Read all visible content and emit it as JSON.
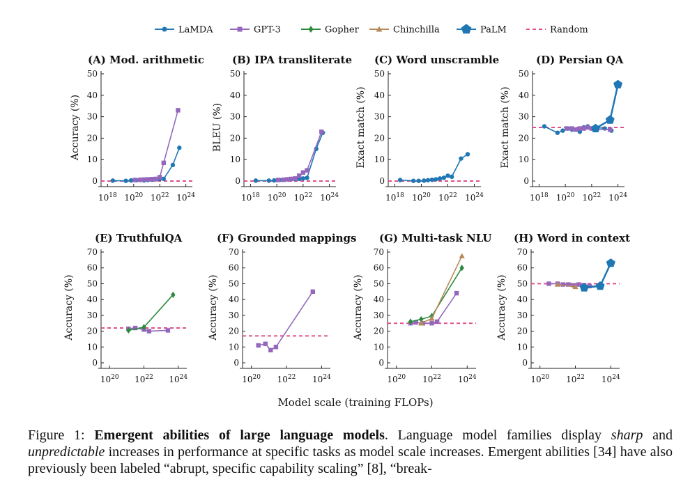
{
  "legend": {
    "items": [
      {
        "name": "LaMDA",
        "color": "#1f77b4",
        "marker": "circle"
      },
      {
        "name": "GPT-3",
        "color": "#9467bd",
        "marker": "square"
      },
      {
        "name": "Gopher",
        "color": "#2b8a3e",
        "marker": "diamond"
      },
      {
        "name": "Chinchilla",
        "color": "#b58a5a",
        "marker": "triangle"
      },
      {
        "name": "PaLM",
        "color": "#1f77b4",
        "marker": "pentagon"
      },
      {
        "name": "Random",
        "color": "#e0508a",
        "marker": "dash"
      }
    ]
  },
  "x_axis_label": "Model scale (training FLOPs)",
  "caption": {
    "figure_label": "Figure 1:",
    "bold_title": "Emergent abilities of large language models",
    "t1": ". Language model families display ",
    "i1": "sharp",
    "t2": " and ",
    "i2": "unpredictable",
    "t3": " increases in performance at specific tasks as model scale increases. Emergent abilities [34] have also previously been labeled “abrupt, specific capability scaling” [8], “break-"
  },
  "chart_data": [
    {
      "title": "(A) Mod. arithmetic",
      "type": "line",
      "ylabel": "Accuracy (%)",
      "xlim": [
        17.5,
        24.5
      ],
      "ylim": [
        0,
        50
      ],
      "yticks": [
        0,
        10,
        20,
        30,
        40,
        50
      ],
      "xticks": [
        18,
        20,
        22,
        24
      ],
      "random": 0,
      "series": [
        {
          "model": "LaMDA",
          "x": [
            18.4,
            19.4,
            19.8,
            20.2,
            20.5,
            20.8,
            21.1,
            21.4,
            21.7,
            22.0,
            22.3,
            23.0,
            23.5
          ],
          "y": [
            0.2,
            0.1,
            0.3,
            0.4,
            0.5,
            0.3,
            0.5,
            0.6,
            0.8,
            1.0,
            1.0,
            7.5,
            15.5
          ]
        },
        {
          "model": "GPT-3",
          "x": [
            20.1,
            20.5,
            20.8,
            21.1,
            21.4,
            21.7,
            22.0,
            22.3,
            23.4
          ],
          "y": [
            0.5,
            0.6,
            0.7,
            0.8,
            0.9,
            1.0,
            1.8,
            8.5,
            33
          ]
        }
      ]
    },
    {
      "title": "(B) IPA transliterate",
      "type": "line",
      "ylabel": "BLEU (%)",
      "xlim": [
        17.5,
        24.5
      ],
      "ylim": [
        0,
        50
      ],
      "yticks": [
        0,
        10,
        20,
        30,
        40,
        50
      ],
      "xticks": [
        18,
        20,
        22,
        24
      ],
      "random": 0,
      "series": [
        {
          "model": "LaMDA",
          "x": [
            18.4,
            19.4,
            19.8,
            20.2,
            20.5,
            20.8,
            21.1,
            21.4,
            21.7,
            22.0,
            22.3,
            23.0,
            23.5
          ],
          "y": [
            0.2,
            0.2,
            0.3,
            0.5,
            0.6,
            0.8,
            0.8,
            0.9,
            1.0,
            1.2,
            1.5,
            15,
            22.5
          ]
        },
        {
          "model": "GPT-3",
          "x": [
            20.1,
            20.5,
            20.8,
            21.1,
            21.4,
            21.7,
            22.0,
            22.3,
            23.4
          ],
          "y": [
            0.5,
            0.6,
            0.8,
            1.0,
            1.2,
            2.5,
            4,
            5,
            23
          ]
        }
      ]
    },
    {
      "title": "(C) Word unscramble",
      "type": "line",
      "ylabel": "Exact match (%)",
      "xlim": [
        17.5,
        24.5
      ],
      "ylim": [
        0,
        50
      ],
      "yticks": [
        0,
        10,
        20,
        30,
        40,
        50
      ],
      "xticks": [
        18,
        20,
        22,
        24
      ],
      "random": 0,
      "series": [
        {
          "model": "LaMDA",
          "x": [
            18.4,
            19.4,
            19.8,
            20.2,
            20.5,
            20.8,
            21.1,
            21.4,
            21.7,
            22.0,
            22.3,
            23.0,
            23.5
          ],
          "y": [
            0.5,
            0.1,
            0.1,
            0.2,
            0.4,
            0.6,
            0.8,
            1.2,
            1.5,
            2.5,
            2.0,
            10.5,
            12.5
          ]
        }
      ]
    },
    {
      "title": "(D) Persian QA",
      "type": "line",
      "ylabel": "Exact match (%)",
      "xlim": [
        17.5,
        24.5
      ],
      "ylim": [
        0,
        50
      ],
      "yticks": [
        0,
        10,
        20,
        30,
        40,
        50
      ],
      "xticks": [
        18,
        20,
        22,
        24
      ],
      "random": 25,
      "series": [
        {
          "model": "LaMDA",
          "x": [
            18.4,
            19.4,
            19.8,
            20.2,
            20.5,
            20.8,
            21.1,
            21.4,
            21.7,
            22.0,
            22.3,
            23.0,
            23.5
          ],
          "y": [
            25.5,
            22.5,
            23.5,
            24.5,
            24,
            24,
            23,
            25,
            25.5,
            24.5,
            25,
            24.5,
            23.5
          ]
        },
        {
          "model": "GPT-3",
          "x": [
            20.1,
            20.5,
            20.8,
            21.1,
            21.4,
            21.7,
            22.0,
            22.3,
            23.4
          ],
          "y": [
            24.5,
            24.5,
            24,
            24.5,
            24.5,
            25,
            24.5,
            24,
            24
          ]
        },
        {
          "model": "PaLM",
          "x": [
            22.3,
            23.4,
            24.0
          ],
          "y": [
            24.5,
            28.5,
            45
          ]
        }
      ]
    },
    {
      "title": "(E) TruthfulQA",
      "type": "line",
      "ylabel": "Accuracy (%)",
      "xlim": [
        19.5,
        24.5
      ],
      "ylim": [
        0,
        70
      ],
      "yticks": [
        0,
        10,
        20,
        30,
        40,
        50,
        60,
        70
      ],
      "xticks": [
        20,
        22,
        24
      ],
      "random": 22,
      "series": [
        {
          "model": "GPT-3",
          "x": [
            21.1,
            21.5,
            22.0,
            22.3,
            23.4
          ],
          "y": [
            21.5,
            22,
            21,
            20,
            20.5
          ]
        },
        {
          "model": "Gopher",
          "x": [
            21.1,
            22.0,
            23.7
          ],
          "y": [
            20.5,
            22.5,
            43
          ]
        }
      ]
    },
    {
      "title": "(F) Grounded mappings",
      "type": "line",
      "ylabel": "Accuracy (%)",
      "xlim": [
        19.5,
        24.5
      ],
      "ylim": [
        0,
        70
      ],
      "yticks": [
        0,
        10,
        20,
        30,
        40,
        50,
        60,
        70
      ],
      "xticks": [
        20,
        22,
        24
      ],
      "random": 17,
      "series": [
        {
          "model": "GPT-3",
          "x": [
            20.4,
            20.8,
            21.1,
            21.4,
            23.5
          ],
          "y": [
            11,
            12,
            8,
            10,
            45
          ]
        }
      ]
    },
    {
      "title": "(G) Multi-task NLU",
      "type": "line",
      "ylabel": "Accuracy (%)",
      "xlim": [
        19.5,
        24.5
      ],
      "ylim": [
        0,
        70
      ],
      "yticks": [
        0,
        10,
        20,
        30,
        40,
        50,
        60,
        70
      ],
      "xticks": [
        20,
        22,
        24
      ],
      "random": 25,
      "series": [
        {
          "model": "GPT-3",
          "x": [
            20.8,
            21.1,
            21.5,
            22.0,
            22.3,
            23.4
          ],
          "y": [
            25,
            25.5,
            25,
            25,
            26,
            44
          ]
        },
        {
          "model": "Gopher",
          "x": [
            20.8,
            21.4,
            22.0,
            23.7
          ],
          "y": [
            26,
            27.5,
            29.5,
            60
          ]
        },
        {
          "model": "Chinchilla",
          "x": [
            21.4,
            22.0,
            23.7
          ],
          "y": [
            25,
            28,
            67.5
          ]
        }
      ]
    },
    {
      "title": "(H) Word in context",
      "type": "line",
      "ylabel": "Accuracy (%)",
      "xlim": [
        19.5,
        24.5
      ],
      "ylim": [
        0,
        70
      ],
      "yticks": [
        0,
        10,
        20,
        30,
        40,
        50,
        60,
        70
      ],
      "xticks": [
        20,
        22,
        24
      ],
      "random": 50,
      "series": [
        {
          "model": "GPT-3",
          "x": [
            20.5,
            21.0,
            21.3,
            21.6,
            21.9,
            22.2,
            22.5,
            22.8,
            23.4
          ],
          "y": [
            50,
            50,
            49.5,
            49.5,
            49,
            49.5,
            49,
            48.5,
            48.5
          ]
        },
        {
          "model": "Chinchilla",
          "x": [
            21.0,
            22.0
          ],
          "y": [
            49.5,
            48
          ]
        },
        {
          "model": "PaLM",
          "x": [
            22.5,
            23.4,
            24.0
          ],
          "y": [
            47.5,
            48.5,
            63
          ]
        }
      ]
    }
  ]
}
